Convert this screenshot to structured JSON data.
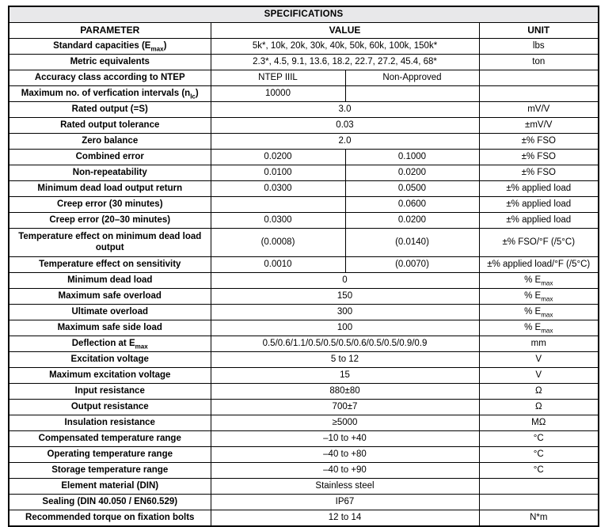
{
  "title": "SPECIFICATIONS",
  "table": {
    "headers": {
      "parameter": "PARAMETER",
      "value": "VALUE",
      "unit": "UNIT"
    },
    "rows": [
      {
        "param": "Standard capacities (E~{max})",
        "value": "5k*, 10k, 20k, 30k, 40k, 50k, 60k, 100k, 150k*",
        "unit": "lbs"
      },
      {
        "param": "Metric equivalents",
        "value": "2.3*, 4.5, 9.1, 13.6, 18.2, 22.7, 27.2, 45.4, 68*",
        "unit": "ton"
      },
      {
        "param": "Accuracy class according to NTEP",
        "value1": "NTEP IIIL",
        "value2": "Non-Approved",
        "unit": ""
      },
      {
        "param": "Maximum no. of verfication intervals (n~{lc})",
        "value1": "10000",
        "value2": "",
        "unit": ""
      },
      {
        "param": "Rated output (=S)",
        "value": "3.0",
        "unit": "mV/V"
      },
      {
        "param": "Rated output tolerance",
        "value": "0.03",
        "unit": "±mV/V"
      },
      {
        "param": "Zero balance",
        "value": "2.0",
        "unit": "±% FSO"
      },
      {
        "param": "Combined error",
        "value1": "0.0200",
        "value2": "0.1000",
        "unit": "±% FSO"
      },
      {
        "param": "Non-repeatability",
        "value1": "0.0100",
        "value2": "0.0200",
        "unit": "±% FSO"
      },
      {
        "param": "Minimum dead load output return",
        "value1": "0.0300",
        "value2": "0.0500",
        "unit": "±% applied load"
      },
      {
        "param": "Creep error (30 minutes)",
        "value1": "",
        "value2": "0.0600",
        "unit": "±% applied load"
      },
      {
        "param": "Creep error (20–30 minutes)",
        "value1": "0.0300",
        "value2": "0.0200",
        "unit": "±% applied load"
      },
      {
        "param": "Temperature effect on minimum dead load output",
        "value1": "(0.0008)",
        "value2": "(0.0140)",
        "unit": "±% FSO/°F (/5°C)",
        "tall": true
      },
      {
        "param": "Temperature effect on sensitivity",
        "value1": "0.0010",
        "value2": "(0.0070)",
        "unit": "±% applied load/°F (/5°C)"
      },
      {
        "param": "Minimum dead load",
        "value": "0",
        "unit": "% E~{max}"
      },
      {
        "param": "Maximum safe overload",
        "value": "150",
        "unit": "% E~{max}"
      },
      {
        "param": "Ultimate overload",
        "value": "300",
        "unit": "% E~{max}"
      },
      {
        "param": "Maximum safe side load",
        "value": "100",
        "unit": "% E~{max}"
      },
      {
        "param": "Deflection at E~{max}",
        "value": "0.5/0.6/1.1/0.5/0.5/0.5/0.6/0.5/0.5/0.9/0.9",
        "unit": "mm"
      },
      {
        "param": "Excitation voltage",
        "value": "5 to 12",
        "unit": "V"
      },
      {
        "param": "Maximum excitation voltage",
        "value": "15",
        "unit": "V"
      },
      {
        "param": "Input resistance",
        "value": "880±80",
        "unit": "Ω"
      },
      {
        "param": "Output resistance",
        "value": "700±7",
        "unit": "Ω"
      },
      {
        "param": "Insulation resistance",
        "value": "≥5000",
        "unit": "MΩ"
      },
      {
        "param": "Compensated temperature range",
        "value": "–10 to +40",
        "unit": "°C"
      },
      {
        "param": "Operating temperature range",
        "value": "–40 to +80",
        "unit": "°C"
      },
      {
        "param": "Storage temperature range",
        "value": "–40 to +90",
        "unit": "°C"
      },
      {
        "param": "Element material (DIN)",
        "value": "Stainless steel",
        "unit": ""
      },
      {
        "param": "Sealing (DIN 40.050 / EN60.529)",
        "value": "IP67",
        "unit": ""
      },
      {
        "param": "Recommended torque on fixation bolts",
        "value": "12 to 14",
        "unit": "N*m"
      }
    ]
  }
}
